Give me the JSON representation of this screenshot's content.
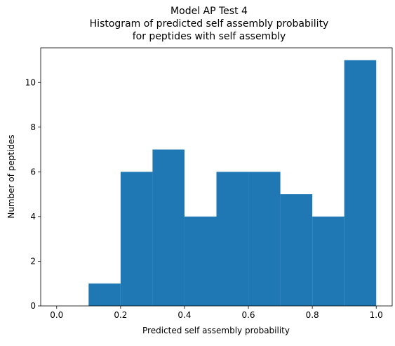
{
  "chart_data": {
    "type": "bar",
    "title": [
      "Model AP Test 4",
      "Histogram of predicted self assembly probability",
      "for peptides with self assembly"
    ],
    "xlabel": "Predicted self assembly probability",
    "ylabel": "Number of peptides",
    "bin_edges": [
      0.0,
      0.1,
      0.2,
      0.3,
      0.4,
      0.5,
      0.6,
      0.7,
      0.8,
      0.9,
      1.0
    ],
    "values": [
      0,
      1,
      6,
      7,
      4,
      6,
      6,
      5,
      4,
      11
    ],
    "xlim": [
      -0.05,
      1.05
    ],
    "ylim": [
      0,
      11.55
    ],
    "xticks": [
      0.0,
      0.2,
      0.4,
      0.6,
      0.8,
      1.0
    ],
    "xtick_labels": [
      "0.0",
      "0.2",
      "0.4",
      "0.6",
      "0.8",
      "1.0"
    ],
    "yticks": [
      0,
      2,
      4,
      6,
      8,
      10
    ],
    "ytick_labels": [
      "0",
      "2",
      "4",
      "6",
      "8",
      "10"
    ],
    "bar_color": "#1f77b4",
    "grid": false,
    "legend": "none"
  }
}
